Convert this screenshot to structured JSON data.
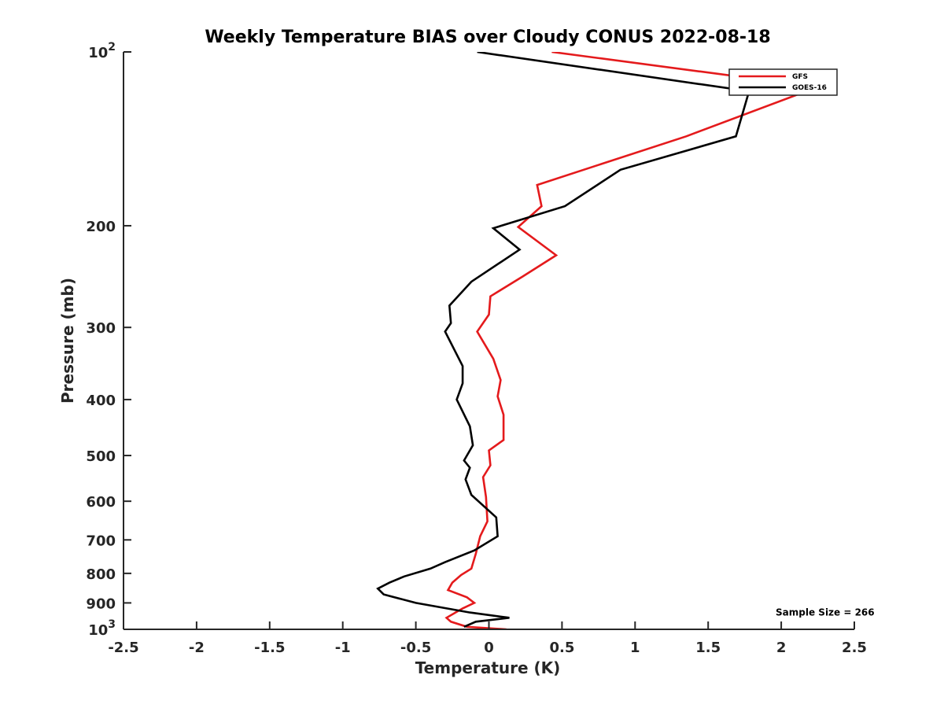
{
  "chart_data": {
    "type": "line",
    "title": "Weekly Temperature BIAS over Cloudy CONUS 2022-08-18",
    "xlabel": "Temperature (K)",
    "ylabel": "Pressure (mb)",
    "xlim": [
      -2.5,
      2.5
    ],
    "ylim": [
      100,
      1000
    ],
    "yscale": "log",
    "y_reversed": true,
    "xticks": [
      -2.5,
      -2,
      -1.5,
      -1,
      -0.5,
      0,
      0.5,
      1,
      1.5,
      2,
      2.5
    ],
    "xtick_labels": [
      "-2.5",
      "-2",
      "-1.5",
      "-1",
      "-0.5",
      "0",
      "0.5",
      "1",
      "1.5",
      "2",
      "2.5"
    ],
    "yticks": [
      100,
      200,
      300,
      400,
      500,
      600,
      700,
      800,
      900,
      1000
    ],
    "ytick_labels": [
      "10^2",
      "200",
      "300",
      "400",
      "500",
      "600",
      "700",
      "800",
      "900",
      "10^3"
    ],
    "grid": false,
    "legend_position": "top-right",
    "series": [
      {
        "name": "GFS",
        "color": "#e41a1c",
        "points": [
          [
            0.43,
            100
          ],
          [
            2.25,
            115
          ],
          [
            1.35,
            140
          ],
          [
            0.33,
            170
          ],
          [
            0.36,
            185
          ],
          [
            0.2,
            201
          ],
          [
            0.46,
            225
          ],
          [
            0.23,
            245
          ],
          [
            0.01,
            265
          ],
          [
            0.0,
            285
          ],
          [
            -0.08,
            305
          ],
          [
            0.03,
            340
          ],
          [
            0.08,
            370
          ],
          [
            0.06,
            395
          ],
          [
            0.1,
            425
          ],
          [
            0.1,
            470
          ],
          [
            0.0,
            490
          ],
          [
            0.01,
            520
          ],
          [
            -0.04,
            545
          ],
          [
            -0.02,
            590
          ],
          [
            -0.01,
            650
          ],
          [
            -0.06,
            690
          ],
          [
            -0.09,
            740
          ],
          [
            -0.12,
            785
          ],
          [
            -0.19,
            805
          ],
          [
            -0.25,
            830
          ],
          [
            -0.28,
            855
          ],
          [
            -0.15,
            880
          ],
          [
            -0.1,
            900
          ],
          [
            -0.18,
            920
          ],
          [
            -0.29,
            955
          ],
          [
            -0.26,
            970
          ],
          [
            -0.15,
            990
          ],
          [
            0.12,
            1000
          ]
        ]
      },
      {
        "name": "GOES-16",
        "color": "#000000",
        "points": [
          [
            -0.08,
            100
          ],
          [
            1.78,
            117
          ],
          [
            1.69,
            140
          ],
          [
            0.9,
            160
          ],
          [
            0.52,
            185
          ],
          [
            0.03,
            202
          ],
          [
            0.21,
            220
          ],
          [
            -0.12,
            250
          ],
          [
            -0.27,
            275
          ],
          [
            -0.26,
            295
          ],
          [
            -0.3,
            305
          ],
          [
            -0.18,
            350
          ],
          [
            -0.18,
            375
          ],
          [
            -0.22,
            400
          ],
          [
            -0.13,
            445
          ],
          [
            -0.11,
            480
          ],
          [
            -0.17,
            510
          ],
          [
            -0.13,
            525
          ],
          [
            -0.16,
            550
          ],
          [
            -0.12,
            585
          ],
          [
            0.05,
            640
          ],
          [
            0.06,
            690
          ],
          [
            -0.1,
            730
          ],
          [
            -0.3,
            765
          ],
          [
            -0.4,
            785
          ],
          [
            -0.58,
            810
          ],
          [
            -0.68,
            830
          ],
          [
            -0.76,
            850
          ],
          [
            -0.72,
            870
          ],
          [
            -0.5,
            900
          ],
          [
            -0.13,
            935
          ],
          [
            0.14,
            955
          ],
          [
            -0.09,
            970
          ],
          [
            -0.17,
            990
          ]
        ]
      }
    ],
    "annotations": [
      {
        "text": "Sample Size = 266",
        "x": 2.3,
        "y": 935
      }
    ]
  }
}
